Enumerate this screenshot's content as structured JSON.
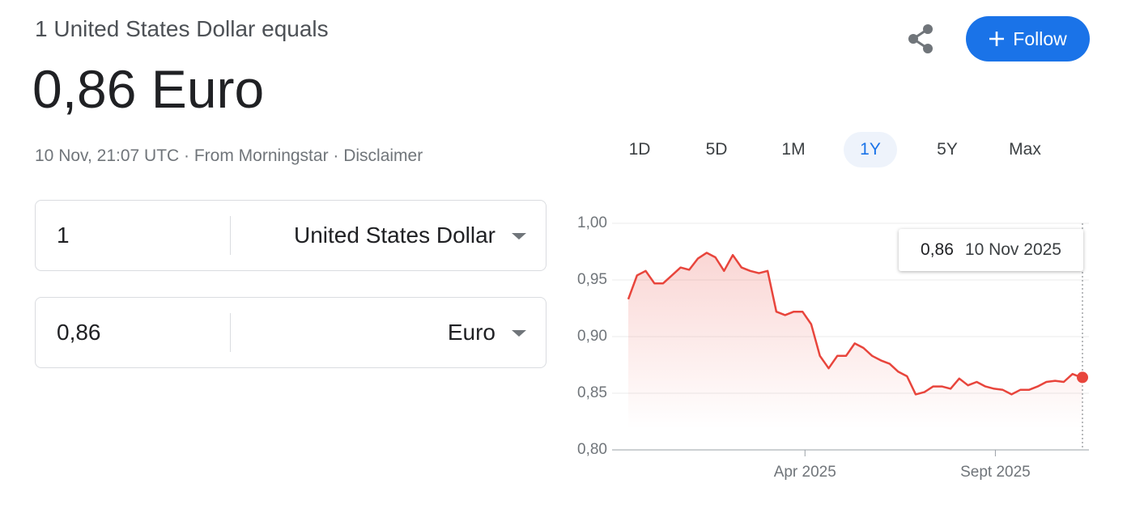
{
  "header": {
    "subtitle": "1 United States Dollar equals",
    "title": "0,86 Euro",
    "meta": "10 Nov, 21:07 UTC · From Morningstar · Disclaimer"
  },
  "actions": {
    "follow": "Follow"
  },
  "converter": {
    "rows": [
      {
        "amount": "1",
        "currency": "United States Dollar"
      },
      {
        "amount": "0,86",
        "currency": "Euro"
      }
    ]
  },
  "ranges": [
    "1D",
    "5D",
    "1M",
    "1Y",
    "5Y",
    "Max"
  ],
  "selected_range": "1Y",
  "chart_data": {
    "type": "line",
    "x": [
      "2024-11-10",
      "2024-11-17",
      "2024-11-24",
      "2024-12-01",
      "2024-12-08",
      "2024-12-15",
      "2024-12-22",
      "2024-12-29",
      "2025-01-05",
      "2025-01-12",
      "2025-01-19",
      "2025-01-26",
      "2025-02-02",
      "2025-02-09",
      "2025-02-16",
      "2025-02-23",
      "2025-03-02",
      "2025-03-09",
      "2025-03-16",
      "2025-03-23",
      "2025-03-30",
      "2025-04-06",
      "2025-04-13",
      "2025-04-20",
      "2025-04-27",
      "2025-05-04",
      "2025-05-11",
      "2025-05-18",
      "2025-05-25",
      "2025-06-01",
      "2025-06-08",
      "2025-06-15",
      "2025-06-22",
      "2025-06-29",
      "2025-07-06",
      "2025-07-13",
      "2025-07-20",
      "2025-07-27",
      "2025-08-03",
      "2025-08-10",
      "2025-08-17",
      "2025-08-24",
      "2025-08-31",
      "2025-09-07",
      "2025-09-14",
      "2025-09-21",
      "2025-09-28",
      "2025-10-05",
      "2025-10-12",
      "2025-10-19",
      "2025-10-26",
      "2025-11-02",
      "2025-11-09",
      "2025-11-10"
    ],
    "series": [
      {
        "name": "USD/EUR",
        "color": "#e8453c",
        "values": [
          0.933,
          0.954,
          0.958,
          0.947,
          0.947,
          0.954,
          0.961,
          0.959,
          0.969,
          0.974,
          0.97,
          0.958,
          0.972,
          0.961,
          0.958,
          0.956,
          0.958,
          0.922,
          0.919,
          0.922,
          0.922,
          0.911,
          0.883,
          0.872,
          0.883,
          0.883,
          0.894,
          0.89,
          0.883,
          0.879,
          0.876,
          0.869,
          0.865,
          0.849,
          0.851,
          0.856,
          0.856,
          0.854,
          0.863,
          0.857,
          0.86,
          0.856,
          0.854,
          0.853,
          0.849,
          0.853,
          0.853,
          0.856,
          0.86,
          0.861,
          0.86,
          0.867,
          0.864,
          0.864
        ]
      }
    ],
    "xlim": [
      "2024-11-10",
      "2025-11-10"
    ],
    "xticks": [
      {
        "value": "2025-04-01",
        "label": "Apr 2025"
      },
      {
        "value": "2025-09-01",
        "label": "Sept 2025"
      }
    ],
    "ylim": [
      0.8,
      1.0
    ],
    "yticks": [
      {
        "value": 0.8,
        "label": "0,80"
      },
      {
        "value": 0.85,
        "label": "0,85"
      },
      {
        "value": 0.9,
        "label": "0,90"
      },
      {
        "value": 0.95,
        "label": "0,95"
      },
      {
        "value": 1.0,
        "label": "1,00"
      }
    ],
    "grid": true,
    "tooltip": {
      "value_label": "0,86",
      "date": "10 Nov 2025"
    }
  }
}
